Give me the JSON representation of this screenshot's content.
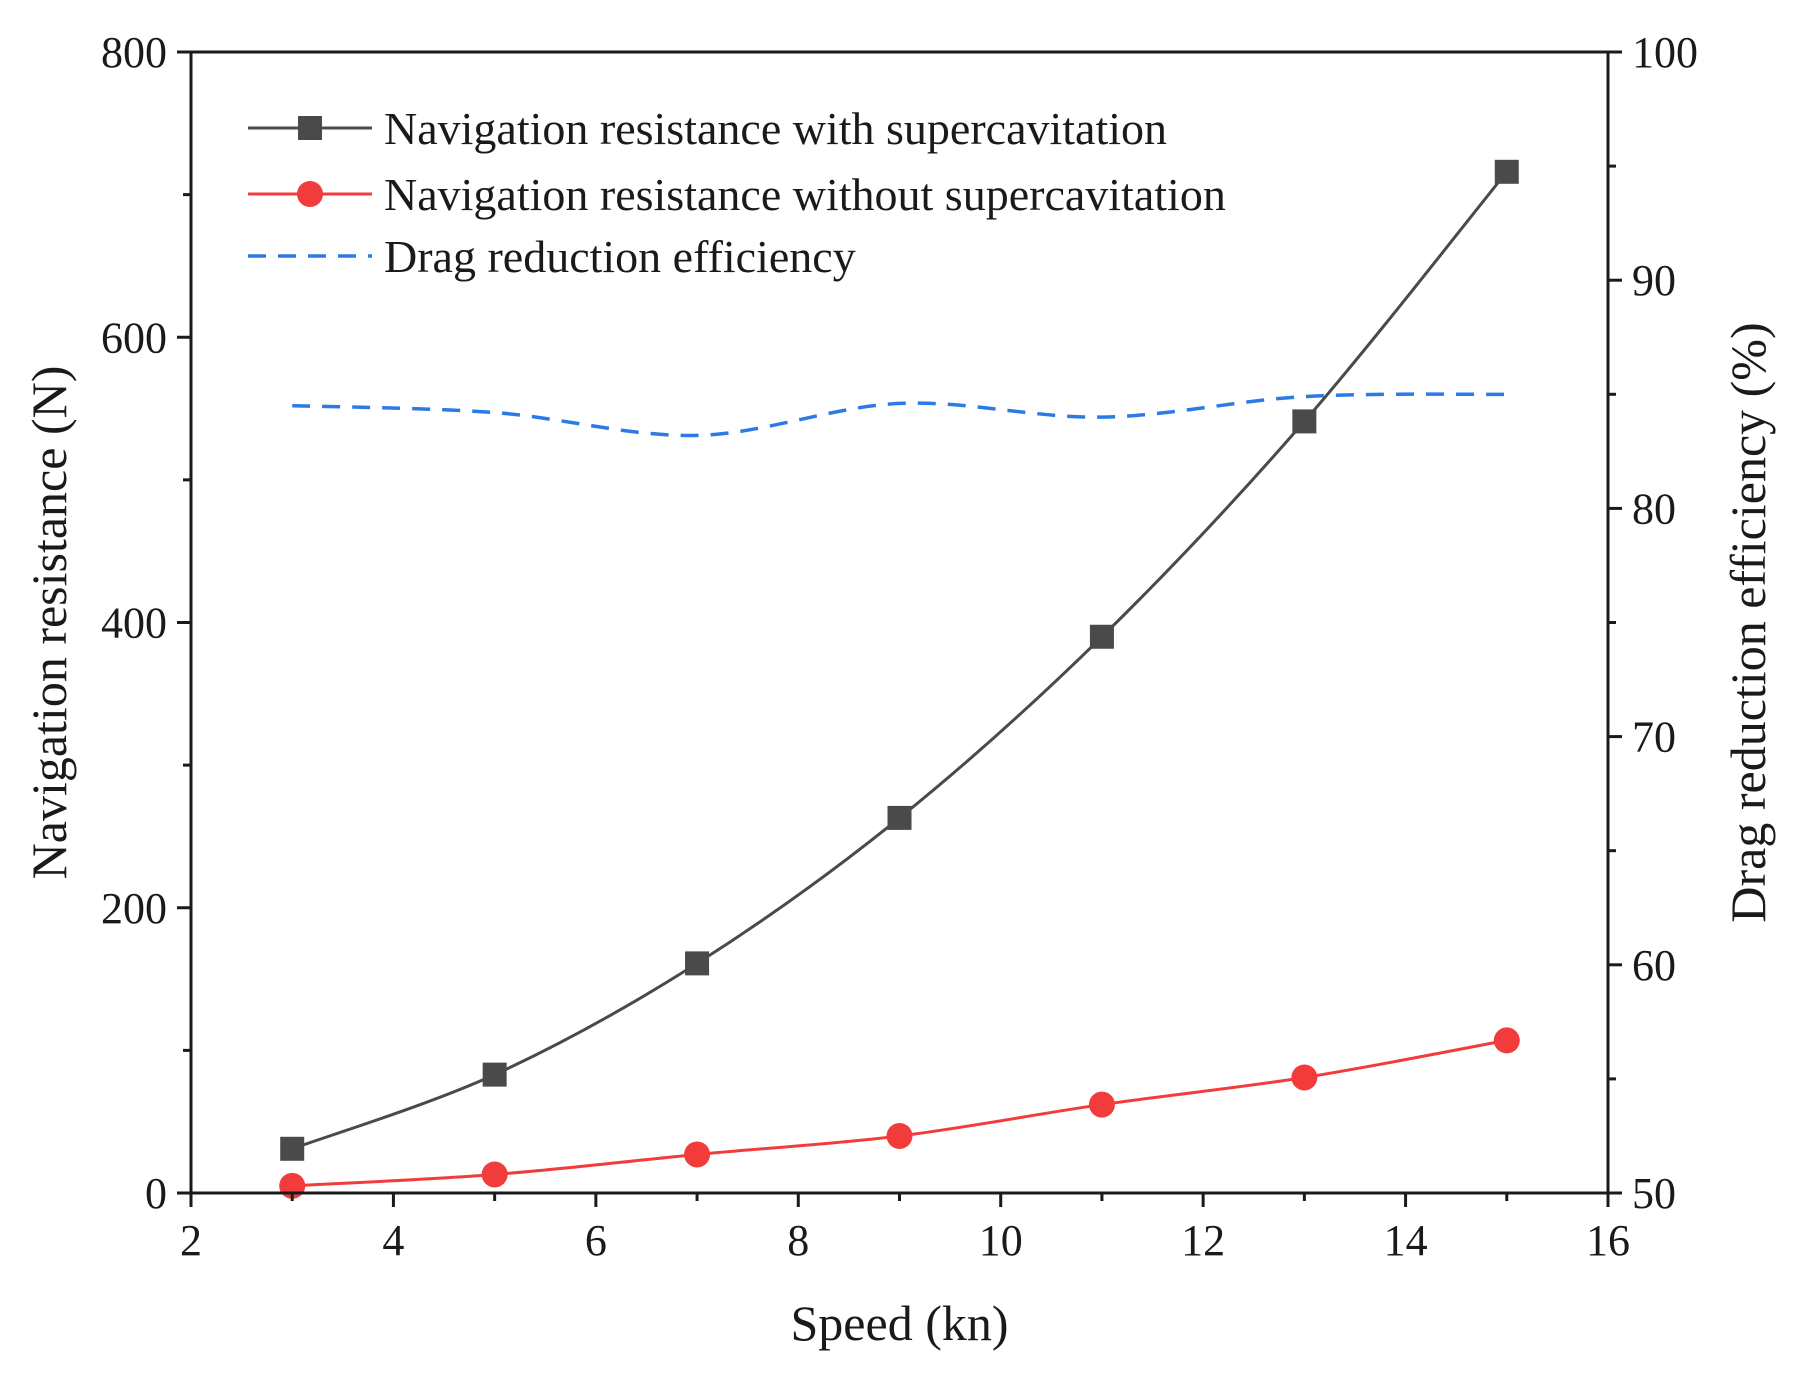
{
  "chart_data": {
    "type": "line",
    "title": "",
    "xlabel": "Speed (kn)",
    "ylabel": "Navigation resistance (N)",
    "y2label": "Drag reduction efficiency (%)",
    "xlim": [
      2,
      16
    ],
    "ylim": [
      0,
      800
    ],
    "y2lim": [
      50,
      100
    ],
    "xticks": [
      2,
      4,
      6,
      8,
      10,
      12,
      14,
      16
    ],
    "yticks": [
      0,
      200,
      400,
      600,
      800
    ],
    "y2ticks": [
      50,
      60,
      70,
      80,
      90,
      100
    ],
    "grid": false,
    "legend_position": "top-left",
    "series": [
      {
        "name": "Navigation resistance with supercavitation",
        "axis": "left",
        "marker": "square",
        "line": "solid",
        "color": "#4a4a4a",
        "x": [
          3,
          5,
          7,
          9,
          11,
          13,
          15
        ],
        "values": [
          31,
          83,
          161,
          263,
          390,
          541,
          716
        ]
      },
      {
        "name": "Navigation resistance without supercavitation",
        "axis": "left",
        "marker": "circle",
        "line": "solid",
        "color": "#f23c3c",
        "x": [
          3,
          5,
          7,
          9,
          11,
          13,
          15
        ],
        "values": [
          5,
          13,
          27,
          40,
          62,
          81,
          107
        ]
      },
      {
        "name": "Drag reduction efficiency",
        "axis": "right",
        "marker": "none",
        "line": "dashed",
        "color": "#2c7be5",
        "x": [
          3,
          5,
          7,
          9,
          11,
          13,
          15
        ],
        "values": [
          84.5,
          84.2,
          83.2,
          84.6,
          84.0,
          84.9,
          85.0
        ]
      }
    ]
  }
}
